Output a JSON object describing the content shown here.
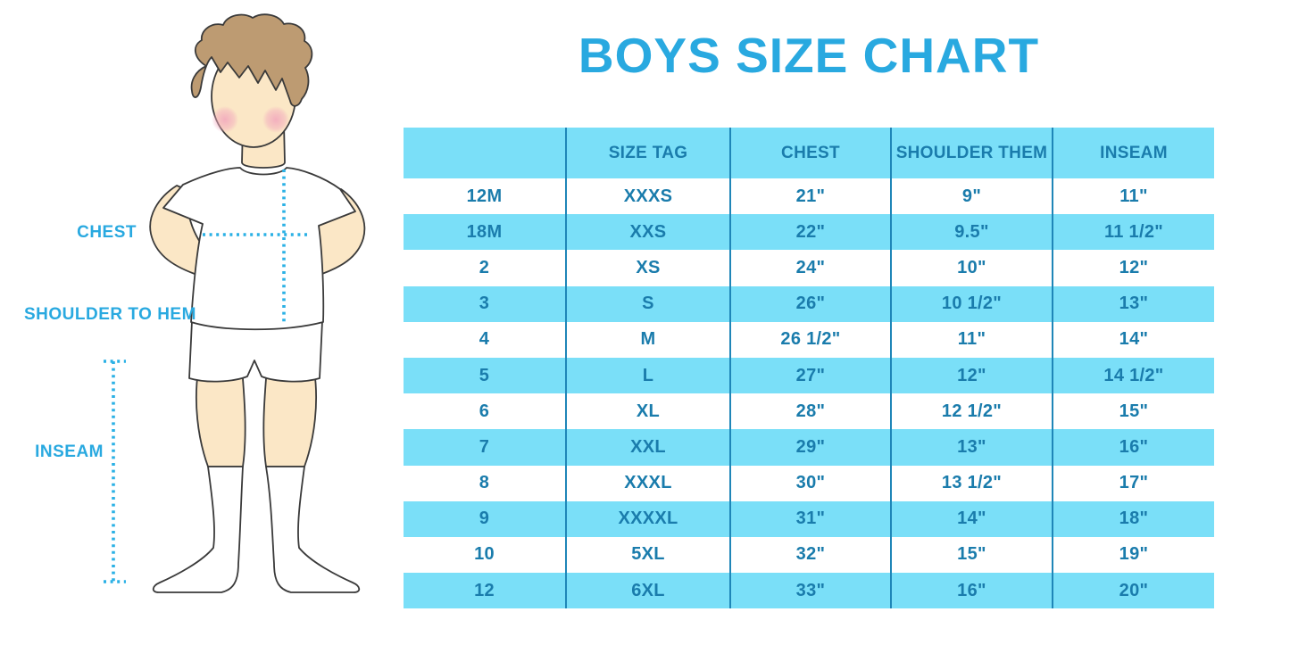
{
  "title": "BOYS SIZE CHART",
  "colors": {
    "background": "#FFFFFF",
    "title_blue": "#29A9E0",
    "label_blue": "#29A9E0",
    "dotted_blue": "#2BB1E5",
    "band_blue": "#7ADFF8",
    "table_text": "#1A7CAC",
    "divider_blue": "#1F86B8",
    "skin": "#FBE7C6",
    "hair": "#BD9B72",
    "blush": "#F2A9BD",
    "outline": "#3A3A3A"
  },
  "figure": {
    "illustration": "boy-with-measurement-lines",
    "labels": {
      "chest": "CHEST",
      "shoulder_to_hem": "SHOULDER TO HEM",
      "inseam": "INSEAM"
    }
  },
  "table": {
    "headers": [
      "",
      "SIZE TAG",
      "CHEST",
      "SHOULDER THEM",
      "INSEAM"
    ],
    "rows": [
      [
        "12M",
        "XXXS",
        "21\"",
        "9\"",
        "11\""
      ],
      [
        "18M",
        "XXS",
        "22\"",
        "9.5\"",
        "11 1/2\""
      ],
      [
        "2",
        "XS",
        "24\"",
        "10\"",
        "12\""
      ],
      [
        "3",
        "S",
        "26\"",
        "10 1/2\"",
        "13\""
      ],
      [
        "4",
        "M",
        "26 1/2\"",
        "11\"",
        "14\""
      ],
      [
        "5",
        "L",
        "27\"",
        "12\"",
        "14 1/2\""
      ],
      [
        "6",
        "XL",
        "28\"",
        "12 1/2\"",
        "15\""
      ],
      [
        "7",
        "XXL",
        "29\"",
        "13\"",
        "16\""
      ],
      [
        "8",
        "XXXL",
        "30\"",
        "13 1/2\"",
        "17\""
      ],
      [
        "9",
        "XXXXL",
        "31\"",
        "14\"",
        "18\""
      ],
      [
        "10",
        "5XL",
        "32\"",
        "15\"",
        "19\""
      ],
      [
        "12",
        "6XL",
        "33\"",
        "16\"",
        "20\""
      ]
    ]
  }
}
